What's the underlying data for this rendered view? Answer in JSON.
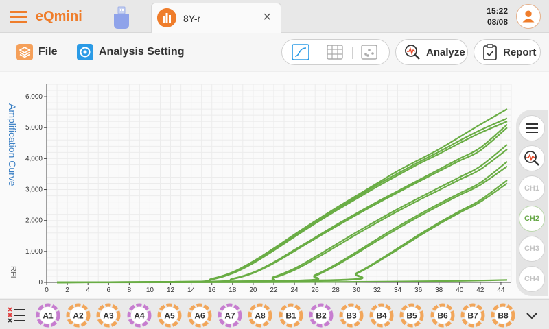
{
  "app": {
    "title": "eQmini"
  },
  "tab": {
    "label": "8Y-r",
    "close": "×"
  },
  "clock": {
    "time": "15:22",
    "date": "08/08"
  },
  "toolbar": {
    "file_label": "File",
    "analysis_label": "Analysis Setting",
    "analyze_label": "Analyze",
    "report_label": "Report"
  },
  "icons": {
    "menu": "hamburger-icon",
    "usb": "usb-drive-icon",
    "tab": "bar-chart-icon",
    "avatar": "user-icon",
    "file": "layers-icon",
    "analysis": "gear-icon",
    "view_curve": "curve-icon",
    "view_table": "table-icon",
    "view_dots": "dots-icon",
    "analyze": "magnifier-curve-icon",
    "report": "clipboard-icon",
    "rail_menu": "hamburger-icon",
    "rail_zoom": "magnifier-curve-icon",
    "well_filter": "well-filter-icon",
    "expand": "chevron-down-icon"
  },
  "colors": {
    "accent": "#ef7d2b",
    "curve": "#6aad45",
    "title_blue": "#3a7fc4",
    "well_orange": "#f2a65a",
    "well_purple": "#c77dd0"
  },
  "channels": [
    {
      "label": "CH1",
      "active": false
    },
    {
      "label": "CH2",
      "active": true
    },
    {
      "label": "CH3",
      "active": false
    },
    {
      "label": "CH4",
      "active": false
    }
  ],
  "wells": [
    {
      "label": "A1",
      "ring": "purple"
    },
    {
      "label": "A2",
      "ring": "orange"
    },
    {
      "label": "A3",
      "ring": "orange"
    },
    {
      "label": "A4",
      "ring": "purple"
    },
    {
      "label": "A5",
      "ring": "orange"
    },
    {
      "label": "A6",
      "ring": "orange"
    },
    {
      "label": "A7",
      "ring": "purple"
    },
    {
      "label": "A8",
      "ring": "orange"
    },
    {
      "label": "B1",
      "ring": "orange"
    },
    {
      "label": "B2",
      "ring": "purple"
    },
    {
      "label": "B3",
      "ring": "orange"
    },
    {
      "label": "B4",
      "ring": "orange"
    },
    {
      "label": "B5",
      "ring": "orange"
    },
    {
      "label": "B6",
      "ring": "orange"
    },
    {
      "label": "B7",
      "ring": "orange"
    },
    {
      "label": "B8",
      "ring": "orange"
    }
  ],
  "chart_data": {
    "type": "line",
    "title": "Amplification  Curve",
    "ylabel": "RFI",
    "xlabel": "",
    "xlim": [
      0,
      45
    ],
    "ylim": [
      0,
      6400
    ],
    "x_ticks": [
      0,
      2,
      4,
      6,
      8,
      10,
      12,
      14,
      16,
      18,
      20,
      22,
      24,
      26,
      28,
      30,
      32,
      34,
      36,
      38,
      40,
      42,
      44
    ],
    "y_ticks": [
      0,
      1000,
      2000,
      3000,
      4000,
      5000,
      6000
    ],
    "y_tick_labels": [
      "0",
      "1,000",
      "2,000",
      "3,000",
      "4,000",
      "5,000",
      "6,000"
    ],
    "grid": true,
    "legend": "none",
    "series": [
      {
        "x": [
          1,
          14,
          16,
          18,
          20,
          22,
          24,
          26,
          28,
          30,
          32,
          34,
          36,
          38,
          40,
          42,
          44.6
        ],
        "values": [
          0,
          20,
          120,
          330,
          680,
          1100,
          1550,
          1980,
          2400,
          2800,
          3200,
          3600,
          3950,
          4300,
          4700,
          5100,
          5600
        ]
      },
      {
        "x": [
          1,
          14,
          16,
          18,
          20,
          22,
          24,
          26,
          28,
          30,
          32,
          34,
          36,
          38,
          40,
          42,
          44.6
        ],
        "values": [
          0,
          15,
          100,
          300,
          640,
          1060,
          1500,
          1930,
          2350,
          2750,
          3150,
          3520,
          3880,
          4220,
          4580,
          4920,
          5300
        ]
      },
      {
        "x": [
          1,
          14,
          16,
          18,
          20,
          22,
          24,
          26,
          28,
          30,
          32,
          34,
          36,
          38,
          40,
          42,
          44.6
        ],
        "values": [
          0,
          15,
          95,
          290,
          620,
          1030,
          1470,
          1900,
          2310,
          2700,
          3090,
          3460,
          3820,
          4150,
          4500,
          4830,
          5200
        ]
      },
      {
        "x": [
          1,
          16,
          18,
          20,
          22,
          24,
          26,
          28,
          30,
          32,
          34,
          36,
          38,
          40,
          42,
          44.6
        ],
        "values": [
          0,
          30,
          120,
          320,
          650,
          1050,
          1450,
          1850,
          2230,
          2600,
          2950,
          3300,
          3650,
          4000,
          4350,
          5100
        ]
      },
      {
        "x": [
          1,
          16,
          18,
          20,
          22,
          24,
          26,
          28,
          30,
          32,
          34,
          36,
          38,
          40,
          42,
          44.6
        ],
        "values": [
          0,
          25,
          110,
          300,
          620,
          1010,
          1410,
          1800,
          2180,
          2550,
          2900,
          3250,
          3590,
          3930,
          4260,
          5000
        ]
      },
      {
        "x": [
          1,
          20,
          22,
          24,
          26,
          28,
          30,
          32,
          34,
          36,
          38,
          40,
          42,
          44.6
        ],
        "values": [
          0,
          40,
          180,
          450,
          820,
          1220,
          1620,
          2000,
          2370,
          2720,
          3060,
          3400,
          3750,
          4450
        ]
      },
      {
        "x": [
          1,
          20,
          22,
          24,
          26,
          28,
          30,
          32,
          34,
          36,
          38,
          40,
          42,
          44.6
        ],
        "values": [
          0,
          30,
          150,
          400,
          760,
          1150,
          1550,
          1930,
          2300,
          2650,
          2980,
          3320,
          3650,
          4300
        ]
      },
      {
        "x": [
          1,
          24,
          26,
          28,
          30,
          32,
          34,
          36,
          38,
          40,
          42,
          44.6
        ],
        "values": [
          0,
          60,
          240,
          580,
          980,
          1400,
          1800,
          2180,
          2540,
          2880,
          3220,
          3900
        ]
      },
      {
        "x": [
          1,
          24,
          26,
          28,
          30,
          32,
          34,
          36,
          38,
          40,
          42,
          44.6
        ],
        "values": [
          0,
          50,
          210,
          540,
          930,
          1340,
          1740,
          2120,
          2480,
          2820,
          3150,
          3750
        ]
      },
      {
        "x": [
          1,
          28,
          30,
          32,
          34,
          36,
          38,
          40,
          42,
          44.6
        ],
        "values": [
          0,
          80,
          300,
          680,
          1100,
          1530,
          1930,
          2300,
          2660,
          3300
        ]
      },
      {
        "x": [
          1,
          28,
          30,
          32,
          34,
          36,
          38,
          40,
          42,
          44.6
        ],
        "values": [
          0,
          70,
          280,
          650,
          1060,
          1480,
          1880,
          2250,
          2600,
          3200
        ]
      },
      {
        "x": [
          1,
          20,
          30,
          40,
          44.6
        ],
        "values": [
          0,
          5,
          20,
          50,
          80
        ]
      }
    ]
  }
}
